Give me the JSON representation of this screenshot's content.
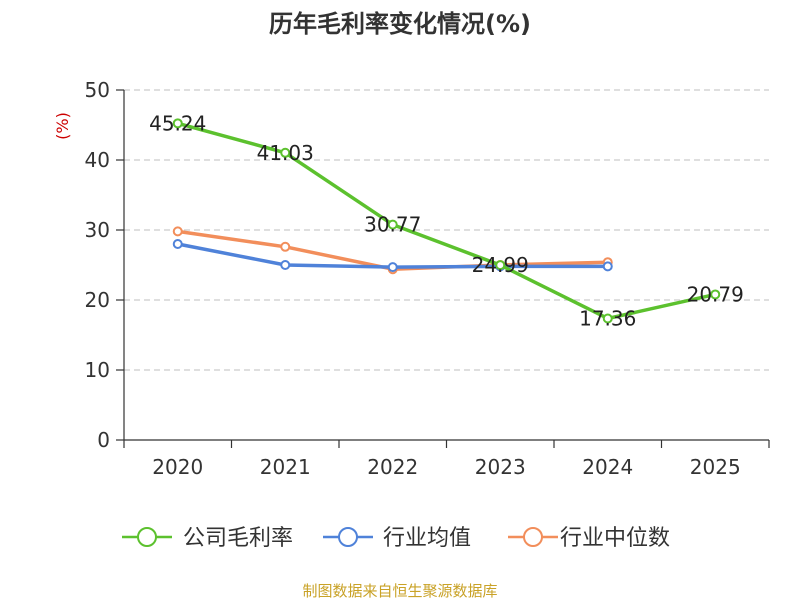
{
  "chart_data": {
    "type": "line",
    "title": "历年毛利率变化情况(%)",
    "ylabel": "(%)",
    "xlabel": "",
    "categories": [
      "2020",
      "2021",
      "2022",
      "2023",
      "2024",
      "2025"
    ],
    "ylim": [
      0,
      50
    ],
    "yticks": [
      0,
      10,
      20,
      30,
      40,
      50
    ],
    "grid": true,
    "legend_position": "bottom",
    "series": [
      {
        "name": "公司毛利率",
        "color": "#5cc12e",
        "values": [
          45.24,
          41.03,
          30.77,
          24.99,
          17.36,
          20.79
        ],
        "show_labels": true
      },
      {
        "name": "行业均值",
        "color": "#4f82d9",
        "values": [
          28.0,
          25.0,
          24.7,
          24.8,
          24.8,
          null
        ],
        "show_labels": false
      },
      {
        "name": "行业中位数",
        "color": "#f28e5b",
        "values": [
          29.8,
          27.6,
          24.4,
          25.0,
          25.4,
          null
        ],
        "show_labels": false
      }
    ],
    "data_labels": [
      "45.24",
      "41.03",
      "30.77",
      "24.99",
      "17.36",
      "20.79"
    ]
  },
  "source": "制图数据来自恒生聚源数据库"
}
